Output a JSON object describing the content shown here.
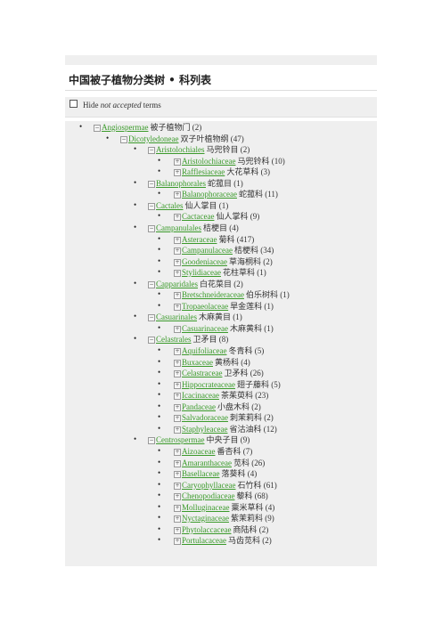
{
  "page": {
    "title": "中国被子植物分类树 • 科列表"
  },
  "filter": {
    "label_prefix": "Hide ",
    "label_em": "not accepted",
    "label_suffix": " terms"
  },
  "tree": [
    {
      "lvl": 0,
      "tog": "minus",
      "latin": "Angiospermae",
      "cn": "被子植物门 (2)"
    },
    {
      "lvl": 1,
      "tog": "minus",
      "latin": "Dicotyledoneae",
      "cn": "双子叶植物纲 (47)"
    },
    {
      "lvl": 2,
      "tog": "minus",
      "latin": "Aristolochiales",
      "cn": "马兜铃目 (2)"
    },
    {
      "lvl": 3,
      "tog": "plus",
      "latin": "Aristolochiaceae",
      "cn": "马兜铃科 (10)"
    },
    {
      "lvl": 3,
      "tog": "plus",
      "latin": "Rafflesiaceae",
      "cn": "大花草科 (3)"
    },
    {
      "lvl": 2,
      "tog": "minus",
      "latin": "Balanophorales",
      "cn": "蛇菰目 (1)"
    },
    {
      "lvl": 3,
      "tog": "plus",
      "latin": "Balanophoraceae",
      "cn": "蛇菰科 (11)"
    },
    {
      "lvl": 2,
      "tog": "minus",
      "latin": "Cactales",
      "cn": "仙人掌目 (1)"
    },
    {
      "lvl": 3,
      "tog": "plus",
      "latin": "Cactaceae",
      "cn": "仙人掌科 (9)"
    },
    {
      "lvl": 2,
      "tog": "minus",
      "latin": "Campanulales",
      "cn": "桔梗目 (4)"
    },
    {
      "lvl": 3,
      "tog": "plus",
      "latin": "Asteraceae",
      "cn": "菊科 (417)"
    },
    {
      "lvl": 3,
      "tog": "plus",
      "latin": "Campanulaceae",
      "cn": "桔梗科 (34)"
    },
    {
      "lvl": 3,
      "tog": "plus",
      "latin": "Goodeniaceae",
      "cn": "草海桐科 (2)"
    },
    {
      "lvl": 3,
      "tog": "plus",
      "latin": "Stylidiaceae",
      "cn": "花柱草科 (1)"
    },
    {
      "lvl": 2,
      "tog": "minus",
      "latin": "Capparidales",
      "cn": "白花菜目 (2)"
    },
    {
      "lvl": 3,
      "tog": "plus",
      "latin": "Bretschneideraceae",
      "cn": "伯乐树科 (1)"
    },
    {
      "lvl": 3,
      "tog": "plus",
      "latin": "Tropaeolaceae",
      "cn": "旱金莲科 (1)"
    },
    {
      "lvl": 2,
      "tog": "minus",
      "latin": "Casuarinales",
      "cn": "木麻黄目 (1)"
    },
    {
      "lvl": 3,
      "tog": "plus",
      "latin": "Casuarinaceae",
      "cn": "木麻黄科 (1)"
    },
    {
      "lvl": 2,
      "tog": "minus",
      "latin": "Celastrales",
      "cn": "卫矛目 (8)"
    },
    {
      "lvl": 3,
      "tog": "plus",
      "latin": "Aquifoliaceae",
      "cn": "冬青科 (5)"
    },
    {
      "lvl": 3,
      "tog": "plus",
      "latin": "Buxaceae",
      "cn": "黄杨科 (4)"
    },
    {
      "lvl": 3,
      "tog": "plus",
      "latin": "Celastraceae",
      "cn": "卫矛科 (26)"
    },
    {
      "lvl": 3,
      "tog": "plus",
      "latin": "Hippocrateaceae",
      "cn": "翅子藤科 (5)"
    },
    {
      "lvl": 3,
      "tog": "plus",
      "latin": "Icacinaceae",
      "cn": "茶茱萸科 (23)"
    },
    {
      "lvl": 3,
      "tog": "plus",
      "latin": "Pandaceae",
      "cn": "小盘木科 (2)"
    },
    {
      "lvl": 3,
      "tog": "plus",
      "latin": "Salvadoraceae",
      "cn": "刺茉莉科 (2)"
    },
    {
      "lvl": 3,
      "tog": "plus",
      "latin": "Staphyleaceae",
      "cn": "省沽油科 (12)"
    },
    {
      "lvl": 2,
      "tog": "minus",
      "latin": "Centrospermae",
      "cn": "中央子目 (9)"
    },
    {
      "lvl": 3,
      "tog": "plus",
      "latin": "Aizoaceae",
      "cn": "番杏科 (7)"
    },
    {
      "lvl": 3,
      "tog": "plus",
      "latin": "Amaranthaceae",
      "cn": "苋科 (26)"
    },
    {
      "lvl": 3,
      "tog": "plus",
      "latin": "Basellaceae",
      "cn": "落葵科 (4)"
    },
    {
      "lvl": 3,
      "tog": "plus",
      "latin": "Caryophyllaceae",
      "cn": "石竹科 (61)"
    },
    {
      "lvl": 3,
      "tog": "plus",
      "latin": "Chenopodiaceae",
      "cn": "藜科 (68)"
    },
    {
      "lvl": 3,
      "tog": "plus",
      "latin": "Molluginaceae",
      "cn": "粟米草科 (4)"
    },
    {
      "lvl": 3,
      "tog": "plus",
      "latin": "Nyctaginaceae",
      "cn": "紫茉莉科 (9)"
    },
    {
      "lvl": 3,
      "tog": "plus",
      "latin": "Phytolaccaceae",
      "cn": "商陆科 (2)"
    },
    {
      "lvl": 3,
      "tog": "plus",
      "latin": "Portulacaceae",
      "cn": "马齿苋科 (2)"
    }
  ]
}
